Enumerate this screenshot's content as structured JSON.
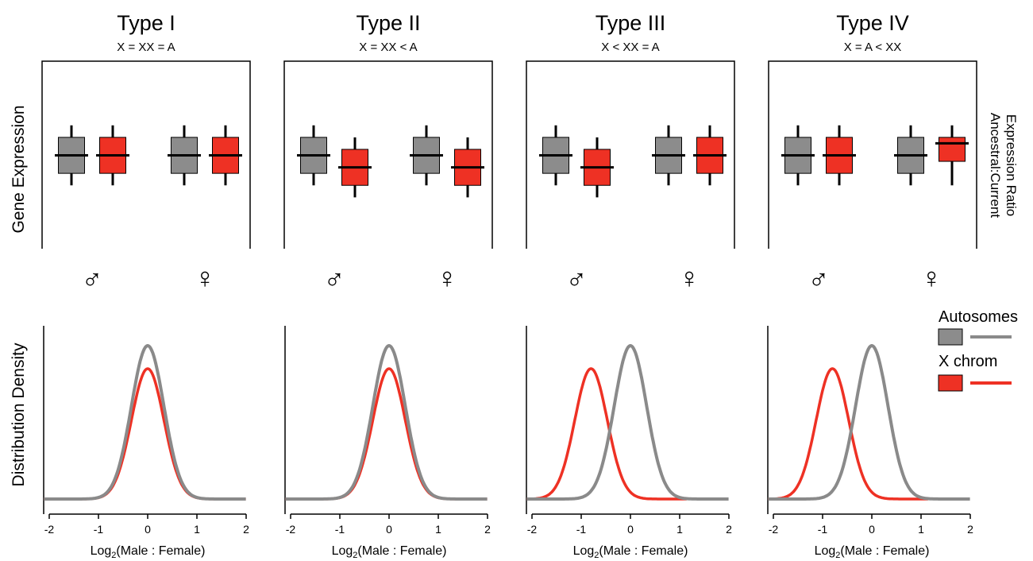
{
  "figure": {
    "ylabel_top": "Gene Expression",
    "ylabel_bottom": "Distribution Density",
    "right_label_line1": "Ancestral:Current",
    "right_label_line2": "Expression Ratio",
    "male_symbol": "♂",
    "female_symbol": "♀",
    "xlabel_prefix": "Log",
    "xlabel_sub": "2",
    "xlabel_suffix": "(Male : Female)",
    "x_ticks": [
      "-2",
      "-1",
      "0",
      "1",
      "2"
    ],
    "legend": {
      "autosomes_label": "Autosomes",
      "xchrom_label": "X chrom"
    }
  },
  "colors": {
    "autosome": "#8a8a8a",
    "autosome_box": "#8c8c8c",
    "xchrom": "#ee3124",
    "axis": "#000000"
  },
  "chart_data": [
    {
      "type": "box",
      "title": "Type I",
      "subtitle": "X = XX = A",
      "groups": [
        "♂",
        "♀"
      ],
      "series": [
        {
          "name": "Autosomes",
          "boxes": [
            {
              "median": 0,
              "q1": -1.5,
              "q3": 1.5,
              "whisker_low": -2.5,
              "whisker_high": 2.5
            },
            {
              "median": 0,
              "q1": -1.5,
              "q3": 1.5,
              "whisker_low": -2.5,
              "whisker_high": 2.5
            }
          ]
        },
        {
          "name": "X chrom",
          "boxes": [
            {
              "median": 0,
              "q1": -1.5,
              "q3": 1.5,
              "whisker_low": -2.5,
              "whisker_high": 2.5
            },
            {
              "median": 0,
              "q1": -1.5,
              "q3": 1.5,
              "whisker_low": -2.5,
              "whisker_high": 2.5
            }
          ]
        }
      ]
    },
    {
      "type": "box",
      "title": "Type II",
      "subtitle": "X = XX < A",
      "groups": [
        "♂",
        "♀"
      ],
      "series": [
        {
          "name": "Autosomes",
          "boxes": [
            {
              "median": 0,
              "q1": -1.5,
              "q3": 1.5,
              "whisker_low": -2.5,
              "whisker_high": 2.5
            },
            {
              "median": 0,
              "q1": -1.5,
              "q3": 1.5,
              "whisker_low": -2.5,
              "whisker_high": 2.5
            }
          ]
        },
        {
          "name": "X chrom",
          "boxes": [
            {
              "median": -1,
              "q1": -2.5,
              "q3": 0.5,
              "whisker_low": -3.5,
              "whisker_high": 1.5
            },
            {
              "median": -1,
              "q1": -2.5,
              "q3": 0.5,
              "whisker_low": -3.5,
              "whisker_high": 1.5
            }
          ]
        }
      ]
    },
    {
      "type": "box",
      "title": "Type III",
      "subtitle": "X < XX = A",
      "groups": [
        "♂",
        "♀"
      ],
      "series": [
        {
          "name": "Autosomes",
          "boxes": [
            {
              "median": 0,
              "q1": -1.5,
              "q3": 1.5,
              "whisker_low": -2.5,
              "whisker_high": 2.5
            },
            {
              "median": 0,
              "q1": -1.5,
              "q3": 1.5,
              "whisker_low": -2.5,
              "whisker_high": 2.5
            }
          ]
        },
        {
          "name": "X chrom",
          "boxes": [
            {
              "median": -1,
              "q1": -2.5,
              "q3": 0.5,
              "whisker_low": -3.5,
              "whisker_high": 1.5
            },
            {
              "median": 0,
              "q1": -1.5,
              "q3": 1.5,
              "whisker_low": -2.5,
              "whisker_high": 2.5
            }
          ]
        }
      ]
    },
    {
      "type": "box",
      "title": "Type IV",
      "subtitle": "X = A < XX",
      "groups": [
        "♂",
        "♀"
      ],
      "series": [
        {
          "name": "Autosomes",
          "boxes": [
            {
              "median": 0,
              "q1": -1.5,
              "q3": 1.5,
              "whisker_low": -2.5,
              "whisker_high": 2.5
            },
            {
              "median": 0,
              "q1": -1.5,
              "q3": 1.5,
              "whisker_low": -2.5,
              "whisker_high": 2.5
            }
          ]
        },
        {
          "name": "X chrom",
          "boxes": [
            {
              "median": 0,
              "q1": -1.5,
              "q3": 1.5,
              "whisker_low": -2.5,
              "whisker_high": 2.5
            },
            {
              "median": 1,
              "q1": -0.5,
              "q3": 1.5,
              "whisker_low": -2.5,
              "whisker_high": 2.5
            }
          ]
        }
      ]
    },
    {
      "type": "line",
      "xlim": [
        -2,
        2
      ],
      "xticks": [
        -2,
        -1,
        0,
        1,
        2
      ],
      "series": [
        {
          "name": "Autosomes",
          "mean": 0,
          "sd": 0.33,
          "peak": 1.0
        },
        {
          "name": "X chrom",
          "mean": 0,
          "sd": 0.33,
          "peak": 0.85
        }
      ]
    },
    {
      "type": "line",
      "xlim": [
        -2,
        2
      ],
      "xticks": [
        -2,
        -1,
        0,
        1,
        2
      ],
      "series": [
        {
          "name": "Autosomes",
          "mean": 0,
          "sd": 0.33,
          "peak": 1.0
        },
        {
          "name": "X chrom",
          "mean": 0,
          "sd": 0.33,
          "peak": 0.85
        }
      ]
    },
    {
      "type": "line",
      "xlim": [
        -2,
        2
      ],
      "xticks": [
        -2,
        -1,
        0,
        1,
        2
      ],
      "series": [
        {
          "name": "Autosomes",
          "mean": 0,
          "sd": 0.33,
          "peak": 1.0
        },
        {
          "name": "X chrom",
          "mean": -0.8,
          "sd": 0.33,
          "peak": 0.85
        }
      ]
    },
    {
      "type": "line",
      "xlim": [
        -2,
        2
      ],
      "xticks": [
        -2,
        -1,
        0,
        1,
        2
      ],
      "series": [
        {
          "name": "Autosomes",
          "mean": 0,
          "sd": 0.33,
          "peak": 1.0
        },
        {
          "name": "X chrom",
          "mean": -0.8,
          "sd": 0.33,
          "peak": 0.85
        }
      ]
    }
  ]
}
